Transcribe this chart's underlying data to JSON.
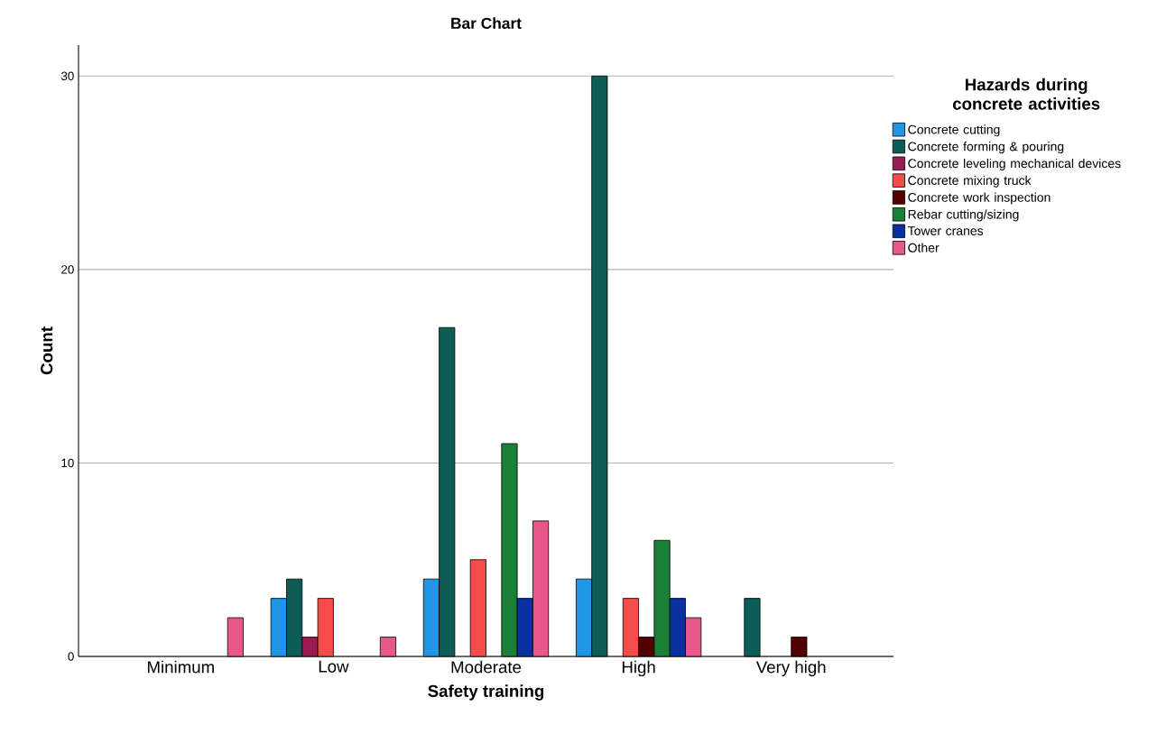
{
  "chart_data": {
    "type": "bar",
    "title": "Bar Chart",
    "xlabel": "Safety training",
    "ylabel": "Count",
    "legend_title": "Hazards during concrete activities",
    "categories": [
      "Minimum",
      "Low",
      "Moderate",
      "High",
      "Very high"
    ],
    "series": [
      {
        "name": "Concrete cutting",
        "color": "#2196e6",
        "values": [
          null,
          3,
          4,
          4,
          null
        ]
      },
      {
        "name": "Concrete forming & pouring",
        "color": "#0d5c55",
        "values": [
          null,
          4,
          17,
          30,
          3
        ]
      },
      {
        "name": "Concrete leveling mechanical devices",
        "color": "#9c1a52",
        "values": [
          null,
          1,
          null,
          null,
          null
        ]
      },
      {
        "name": "Concrete mixing truck",
        "color": "#f44b4b",
        "values": [
          null,
          3,
          5,
          3,
          null
        ]
      },
      {
        "name": "Concrete work inspection",
        "color": "#520000",
        "values": [
          null,
          null,
          null,
          1,
          1
        ]
      },
      {
        "name": "Rebar cutting/sizing",
        "color": "#1a7f37",
        "values": [
          null,
          null,
          11,
          6,
          null
        ]
      },
      {
        "name": "Tower cranes",
        "color": "#0a2f9e",
        "values": [
          null,
          null,
          3,
          3,
          null
        ]
      },
      {
        "name": "Other",
        "color": "#e8578a",
        "values": [
          2,
          1,
          7,
          2,
          null
        ]
      }
    ],
    "ylim": [
      0,
      31.6
    ],
    "yticks": [
      0,
      10,
      20,
      30
    ],
    "grid": "y",
    "legend": "top right"
  }
}
